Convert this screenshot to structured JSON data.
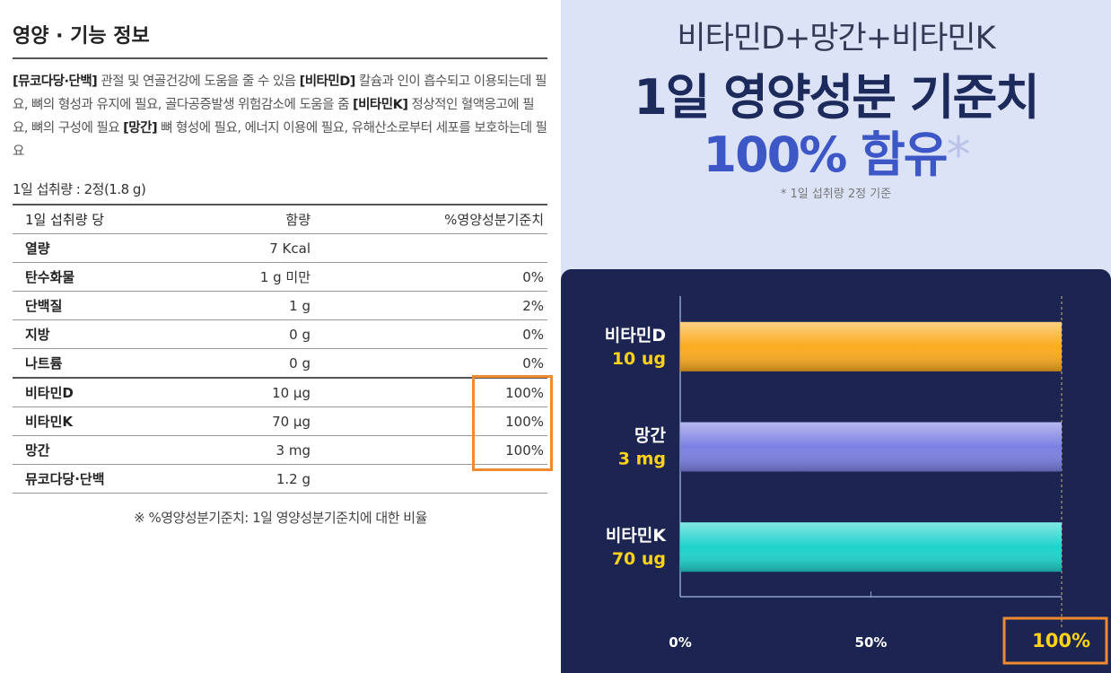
{
  "header": {
    "title": "영양 · 기능 정보"
  },
  "description": [
    {
      "label": "[뮤코다당·단백]",
      "text": "관절 및 연골건강에 도움을 줄 수 있음"
    },
    {
      "label": "[비타민D]",
      "text": "칼슘과 인이 흡수되고 이용되는데 필요, 뼈의 형성과 유지에 필요, 골다공증발생 위험감소에 도움을 줌"
    },
    {
      "label": "[비타민K]",
      "text": "정상적인 혈액응고에 필요, 뼈의 구성에 필요"
    },
    {
      "label": "[망간]",
      "text": "뼈 형성에 필요, 에너지 이용에 필요, 유해산소로부터 세포를 보호하는데 필요"
    }
  ],
  "serving": "1일 섭취량 : 2정(1.8 g)",
  "table": {
    "columns": [
      "1일 섭취량 당",
      "함량",
      "%영양성분기준치"
    ],
    "rows": [
      [
        "열량",
        "7 Kcal",
        null
      ],
      [
        "탄수화물",
        "1 g 미만",
        "0%"
      ],
      [
        "단백질",
        "1 g",
        "2%"
      ],
      [
        "지방",
        "0 g",
        "0%"
      ],
      [
        "나트륨",
        "0 g",
        "0%"
      ],
      [
        "비타민D",
        "10 μg",
        "100%"
      ],
      [
        "비타민K",
        "70 μg",
        "100%"
      ],
      [
        "망간",
        "3 mg",
        "100%"
      ],
      [
        "뮤코다당·단백",
        "1.2 g",
        null
      ]
    ]
  },
  "footnote": "※ %영양성분기준치: 1일 영양성분기준치에 대한 비율",
  "promo": {
    "line1": "비타민D+망간+비타민K",
    "line2": "1일 영양성분 기준치",
    "line3": "100% 함유",
    "asterisk": "*",
    "note": "* 1일 섭취량 2정 기준"
  },
  "chart_data": {
    "type": "bar",
    "orientation": "horizontal",
    "categories": [
      "비타민D",
      "망간",
      "비타민K"
    ],
    "amounts": [
      "10 ug",
      "3 mg",
      "70 ug"
    ],
    "values": [
      100,
      100,
      100
    ],
    "colors": [
      "#fbab1f",
      "#7c80e2",
      "#1fd2cc"
    ],
    "xlim": [
      0,
      100
    ],
    "xticks": [
      {
        "value": 0,
        "label": "0%"
      },
      {
        "value": 50,
        "label": "50%"
      },
      {
        "value": 100,
        "label": "100%"
      }
    ]
  }
}
